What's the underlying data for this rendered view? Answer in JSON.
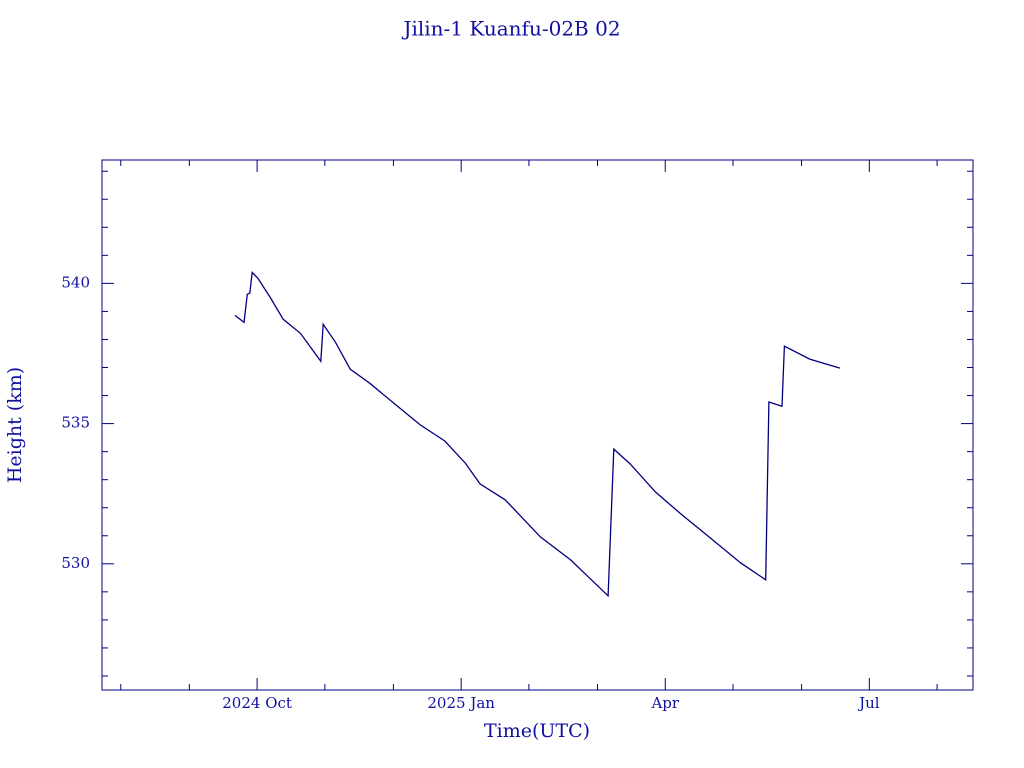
{
  "chart_data": {
    "type": "line",
    "title": "Jilin-1 Kuanfu-02B 02",
    "x_label": "Time(UTC)",
    "y_label": "Height (km)",
    "xlim": [
      2024.56,
      2025.627
    ],
    "ylim": [
      525.5,
      544.4
    ],
    "xticks": [
      {
        "value": 2024.75,
        "label": "2024 Oct"
      },
      {
        "value": 2025.0,
        "label": "2025 Jan"
      },
      {
        "value": 2025.25,
        "label": "Apr"
      },
      {
        "value": 2025.5,
        "label": "Jul"
      }
    ],
    "xminorticks": [
      2024.583,
      2024.667,
      2024.833,
      2024.917,
      2025.083,
      2025.167,
      2025.333,
      2025.417,
      2025.583
    ],
    "yticks": [
      530,
      535,
      540
    ],
    "yminorticks": [
      526,
      527,
      528,
      529,
      531,
      532,
      533,
      534,
      536,
      537,
      538,
      539,
      541,
      542,
      543,
      544
    ],
    "series": [
      {
        "color": "#000080",
        "x": [
          2024.723,
          2024.734,
          2024.738,
          2024.741,
          2024.744,
          2024.751,
          2024.766,
          2024.782,
          2024.803,
          2024.828,
          2024.831,
          2024.846,
          2024.864,
          2024.888,
          2024.919,
          2024.95,
          2024.98,
          2025.005,
          2025.023,
          2025.054,
          2025.097,
          2025.134,
          2025.158,
          2025.18,
          2025.187,
          2025.207,
          2025.238,
          2025.268,
          2025.305,
          2025.342,
          2025.373,
          2025.377,
          2025.393,
          2025.396,
          2025.427,
          2025.464
        ],
        "values": [
          538.86,
          538.61,
          539.61,
          539.65,
          540.39,
          540.18,
          539.5,
          538.72,
          538.22,
          537.22,
          538.54,
          537.9,
          536.94,
          536.44,
          535.69,
          534.95,
          534.38,
          533.59,
          532.85,
          532.28,
          530.96,
          530.14,
          529.47,
          528.86,
          534.09,
          533.56,
          532.56,
          531.81,
          530.93,
          530.04,
          529.43,
          535.77,
          535.62,
          537.76,
          537.3,
          536.98
        ]
      }
    ]
  }
}
